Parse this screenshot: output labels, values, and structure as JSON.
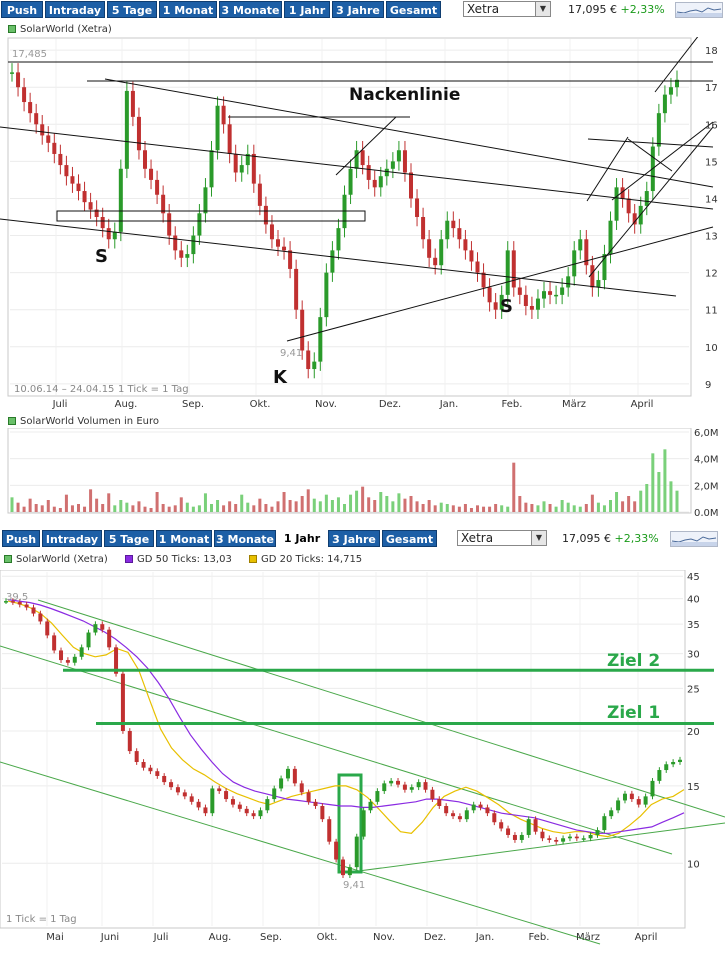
{
  "toolbar1": {
    "tabs": [
      "Push",
      "Intraday",
      "5 Tage",
      "1 Monat",
      "3 Monate",
      "1 Jahr",
      "3 Jahre",
      "Gesamt"
    ],
    "active": -1,
    "exchange": "Xetra",
    "price": "17,095 €",
    "change": "+2,33%"
  },
  "toolbar2": {
    "tabs": [
      "Push",
      "Intraday",
      "5 Tage",
      "1 Monat",
      "3 Monate",
      "1 Jahr",
      "3 Jahre",
      "Gesamt"
    ],
    "active": 5,
    "exchange": "Xetra",
    "price": "17,095 €",
    "change": "+2,33%"
  },
  "chart1_legend": "SolarWorld (Xetra)",
  "volume_legend": "SolarWorld Volumen in Euro",
  "chart2_legend": {
    "main": "SolarWorld (Xetra)",
    "gd50": "GD 50 Ticks: 13,03",
    "gd20": "GD 20 Ticks: 14,715"
  },
  "colors": {
    "tab": "#1d5fa6",
    "up": "#2a9a2a",
    "down": "#c03030",
    "gd50": "#8a2be2",
    "gd20": "#e8c000",
    "target": "#2aa84a",
    "trend": "#4aa84a"
  },
  "chart_data": [
    {
      "type": "line",
      "title": "SolarWorld (Xetra)",
      "range_label": "10.06.14 – 24.04.15",
      "tick_label": "1 Tick = 1 Tag",
      "x_ticks": [
        "Juli",
        "Aug.",
        "Sep.",
        "Okt.",
        "Nov.",
        "Dez.",
        "Jan.",
        "Feb.",
        "März",
        "April"
      ],
      "y_ticks": [
        9,
        10,
        11,
        12,
        13,
        14,
        15,
        16,
        17,
        18
      ],
      "ylim": [
        8.7,
        18.3
      ],
      "high_label": "17,485",
      "low_label": "9,41",
      "annotations": [
        "Nackenlinie",
        "S",
        "K",
        "S"
      ],
      "series": [
        {
          "values": [
            17.4,
            17.0,
            16.6,
            16.3,
            16.0,
            15.7,
            15.5,
            15.2,
            14.9,
            14.6,
            14.4,
            14.2,
            13.9,
            13.7,
            13.5,
            13.2,
            12.9,
            13.1,
            14.8,
            16.9,
            16.2,
            15.3,
            14.8,
            14.5,
            14.1,
            13.6,
            13.0,
            12.6,
            12.4,
            12.5,
            13.0,
            13.6,
            14.3,
            15.3,
            16.5,
            16.0,
            15.2,
            14.7,
            14.9,
            15.2,
            14.4,
            13.8,
            13.3,
            12.9,
            12.7,
            12.6,
            12.1,
            11.0,
            9.9,
            9.4,
            9.6,
            10.8,
            12.0,
            12.6,
            13.2,
            14.1,
            14.8,
            15.3,
            14.9,
            14.5,
            14.3,
            14.6,
            14.8,
            15.0,
            15.3,
            14.7,
            14.0,
            13.5,
            12.9,
            12.4,
            12.2,
            12.9,
            13.4,
            13.2,
            12.9,
            12.6,
            12.3,
            12.0,
            11.6,
            11.2,
            11.0,
            11.4,
            12.6,
            11.6,
            11.4,
            11.1,
            11.0,
            11.3,
            11.5,
            11.4,
            11.4,
            11.6,
            11.9,
            12.6,
            12.9,
            12.2,
            11.6,
            11.8,
            12.5,
            13.4,
            14.3,
            14.0,
            13.6,
            13.3,
            13.8,
            14.2,
            15.4,
            16.3,
            16.8,
            17.0,
            17.2
          ]
        }
      ]
    },
    {
      "type": "bar",
      "title": "SolarWorld Volumen in Euro",
      "y_ticks": [
        "0,0M",
        "2,0M",
        "4,0M",
        "6,0M"
      ],
      "ylim": [
        0,
        6.0
      ],
      "series": [
        {
          "values": [
            1.1,
            0.7,
            0.4,
            1.0,
            0.6,
            0.5,
            0.9,
            0.4,
            0.3,
            1.3,
            0.5,
            0.6,
            0.4,
            1.7,
            1.0,
            0.6,
            1.4,
            0.5,
            0.9,
            0.7,
            0.5,
            0.8,
            0.4,
            0.3,
            1.5,
            0.6,
            0.4,
            0.5,
            1.1,
            0.7,
            0.4,
            0.5,
            1.4,
            0.6,
            0.9,
            0.5,
            0.8,
            0.6,
            1.3,
            0.7,
            0.5,
            1.0,
            0.6,
            0.4,
            0.8,
            1.5,
            0.9,
            0.8,
            1.2,
            1.7,
            1.0,
            0.8,
            1.3,
            0.9,
            1.1,
            0.6,
            1.3,
            1.6,
            1.9,
            1.1,
            0.9,
            1.5,
            1.2,
            0.8,
            1.4,
            1.0,
            1.2,
            0.8,
            0.6,
            0.9,
            0.5,
            0.7,
            0.6,
            0.5,
            0.4,
            0.6,
            0.3,
            0.5,
            0.4,
            0.4,
            0.6,
            0.5,
            0.4,
            3.7,
            1.2,
            0.7,
            0.6,
            0.5,
            0.8,
            0.6,
            0.4,
            0.9,
            0.7,
            0.5,
            0.4,
            0.6,
            1.3,
            0.7,
            0.5,
            0.9,
            1.5,
            0.8,
            1.2,
            0.8,
            1.6,
            2.1,
            4.4,
            3.0,
            4.7,
            2.3,
            1.6
          ]
        }
      ]
    },
    {
      "type": "line",
      "title": "SolarWorld (Xetra)",
      "tick_label": "1 Tick = 1 Tag",
      "x_ticks": [
        "Mai",
        "Juni",
        "Juli",
        "Aug.",
        "Sep.",
        "Okt.",
        "Nov.",
        "Dez.",
        "Jan.",
        "Feb.",
        "März",
        "April"
      ],
      "y_ticks": [
        10,
        15,
        20,
        25,
        30,
        35,
        40,
        45
      ],
      "scale": "log",
      "ylim": [
        7.2,
        46
      ],
      "high_label": "39,5",
      "low_label": "9,41",
      "annotations": [
        "Ziel 2",
        "Ziel 1"
      ],
      "targets": [
        {
          "label": "Ziel 2",
          "value": 27.5
        },
        {
          "label": "Ziel 1",
          "value": 20.8
        }
      ],
      "series": [
        {
          "name": "SolarWorld (Xetra)",
          "values": [
            39.5,
            39.3,
            38.8,
            38.2,
            37.0,
            35.5,
            33.0,
            30.5,
            29.0,
            28.6,
            29.5,
            31.0,
            33.5,
            35.0,
            34.0,
            31.0,
            27.0,
            20.0,
            18.0,
            17.0,
            16.5,
            16.2,
            15.8,
            15.3,
            14.9,
            14.5,
            14.2,
            13.8,
            13.4,
            13.0,
            14.8,
            14.6,
            14.0,
            13.6,
            13.3,
            13.0,
            12.8,
            13.2,
            14.0,
            14.8,
            15.6,
            16.4,
            15.2,
            14.5,
            13.8,
            13.5,
            12.6,
            11.2,
            10.2,
            9.4,
            9.8,
            11.5,
            13.2,
            13.8,
            14.6,
            15.2,
            15.4,
            15.1,
            14.7,
            14.9,
            15.3,
            14.7,
            14.0,
            13.5,
            13.0,
            12.8,
            12.6,
            13.2,
            13.6,
            13.4,
            13.0,
            12.4,
            12.0,
            11.6,
            11.3,
            11.6,
            12.6,
            11.8,
            11.4,
            11.3,
            11.2,
            11.4,
            11.5,
            11.4,
            11.4,
            11.6,
            11.9,
            12.8,
            13.2,
            13.9,
            14.4,
            14.0,
            13.6,
            14.2,
            15.4,
            16.3,
            16.8,
            17.0,
            17.2
          ]
        },
        {
          "name": "GD 50 Ticks: 13,03",
          "values": [
            39.8,
            39.5,
            39.2,
            38.7,
            38.0,
            37.2,
            36.4,
            35.6,
            34.6,
            33.6,
            32.4,
            31.0,
            29.5,
            27.8,
            25.8,
            23.7,
            21.5,
            19.6,
            18.2,
            17.0,
            16.0,
            15.3,
            14.9,
            14.6,
            14.4,
            14.2,
            14.0,
            13.9,
            13.8,
            13.7,
            13.6,
            13.5,
            13.5,
            13.4,
            13.4,
            13.5,
            13.6,
            13.7,
            13.8,
            14.0,
            14.0,
            13.9,
            13.8,
            13.6,
            13.4,
            13.2,
            13.0,
            12.9,
            12.8,
            12.7,
            12.5,
            12.3,
            12.1,
            11.9,
            11.8,
            11.7,
            11.7,
            11.8,
            11.9,
            12.0,
            12.1,
            12.4,
            12.7,
            13.03
          ]
        },
        {
          "name": "GD 20 Ticks: 14,715",
          "values": [
            39.5,
            39.0,
            38.2,
            37.0,
            35.2,
            33.0,
            31.0,
            30.0,
            29.5,
            29.8,
            30.8,
            30.2,
            27.5,
            23.5,
            20.2,
            18.3,
            17.2,
            16.4,
            15.9,
            15.3,
            14.8,
            14.4,
            14.1,
            13.8,
            13.6,
            13.9,
            14.2,
            14.4,
            14.6,
            14.8,
            15.0,
            15.0,
            14.7,
            14.1,
            13.3,
            12.5,
            11.8,
            11.7,
            12.4,
            13.4,
            14.2,
            14.6,
            14.9,
            14.6,
            14.1,
            13.6,
            13.0,
            12.6,
            12.3,
            12.0,
            11.8,
            11.7,
            11.8,
            11.8,
            11.6,
            11.5,
            11.7,
            12.2,
            12.8,
            13.6,
            14.0,
            14.2,
            14.715
          ]
        }
      ]
    }
  ]
}
